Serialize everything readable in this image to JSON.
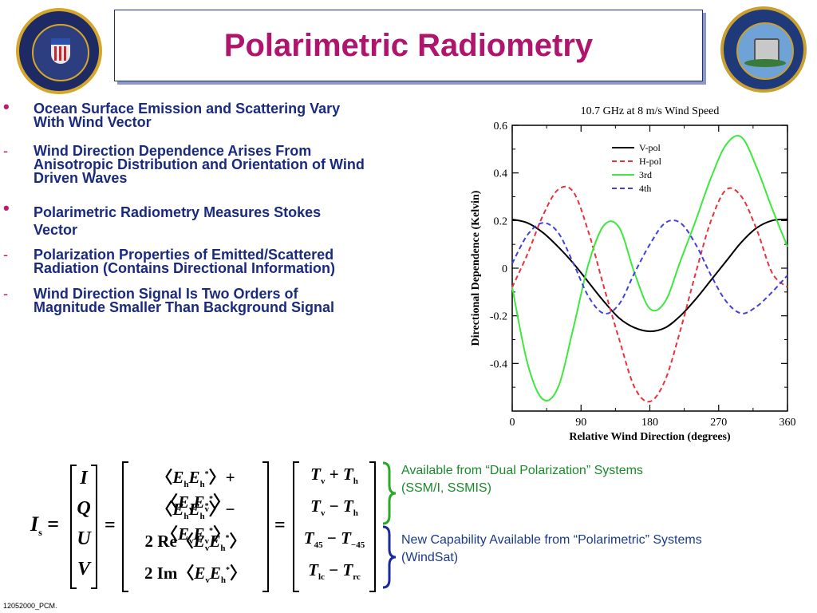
{
  "title": "Polarimetric Radiometry",
  "bullets": [
    {
      "marker": "•",
      "lines": [
        "Ocean Surface Emission and Scattering Vary",
        "With Wind Vector"
      ]
    },
    {
      "marker": "-",
      "lines": [
        "Wind Direction Dependence Arises From",
        "Anisotropic Distribution and Orientation of Wind",
        "Driven Waves"
      ]
    },
    {
      "marker": "•",
      "lines": [
        "Polarimetric Radiometry Measures Stokes",
        "Vector"
      ]
    },
    {
      "marker": "-",
      "lines": [
        "Polarization Properties of Emitted/Scattered",
        "Radiation (Contains Directional Information)"
      ]
    },
    {
      "marker": "-",
      "lines": [
        "Wind Direction Signal Is Two Orders of",
        "Magnitude Smaller Than Background Signal"
      ]
    }
  ],
  "notes": {
    "dual": [
      "Available from “Dual Polarization” Systems",
      "(SSM/I, SSMIS)"
    ],
    "polarimetric": [
      "New Capability Available from “Polarimetric” Systems",
      "(WindSat)"
    ]
  },
  "footer": "12052000_PCM.",
  "colors": {
    "title": "#b0156d",
    "bullet_text": "#1a2a7e",
    "markers": "#c01a6c",
    "note_green": "#1a8a2a",
    "note_blue": "#1a3a8a"
  },
  "chart_data": {
    "type": "line",
    "title": "10.7 GHz at 8 m/s Wind Speed",
    "xlabel": "Relative Wind Direction (degrees)",
    "ylabel": "Directional Dependence (Kelvin)",
    "xlim": [
      0,
      360
    ],
    "ylim": [
      -0.6,
      0.6
    ],
    "xticks": [
      0,
      90,
      180,
      270,
      360
    ],
    "yticks": [
      -0.4,
      -0.2,
      0,
      0.2,
      0.4,
      0.6
    ],
    "ytick_labels": [
      "-0.4",
      "-0.2",
      "0",
      "0.2",
      "0.4",
      "0.6"
    ],
    "legend_position": "top-right",
    "x": [
      0,
      20,
      40,
      60,
      80,
      100,
      120,
      140,
      160,
      180,
      200,
      220,
      240,
      260,
      280,
      300,
      320,
      340,
      360
    ],
    "series": [
      {
        "name": "V-pol",
        "color": "#000000",
        "dash": "",
        "values": [
          0.205,
          0.19,
          0.15,
          0.09,
          0.02,
          -0.06,
          -0.14,
          -0.21,
          -0.25,
          -0.265,
          -0.25,
          -0.2,
          -0.13,
          -0.05,
          0.03,
          0.11,
          0.17,
          0.2,
          0.205
        ]
      },
      {
        "name": "H-pol",
        "color": "#e8323c",
        "dash": "6,4",
        "values": [
          -0.08,
          0.06,
          0.22,
          0.33,
          0.32,
          0.15,
          -0.08,
          -0.3,
          -0.5,
          -0.56,
          -0.47,
          -0.26,
          -0.02,
          0.2,
          0.33,
          0.3,
          0.16,
          -0.02,
          -0.08
        ]
      },
      {
        "name": "3rd",
        "color": "#3ee83e",
        "dash": "",
        "values": [
          -0.08,
          -0.4,
          -0.55,
          -0.5,
          -0.25,
          0.02,
          0.18,
          0.17,
          -0.02,
          -0.17,
          -0.14,
          0.03,
          0.2,
          0.38,
          0.52,
          0.55,
          0.42,
          0.25,
          0.09
        ]
      },
      {
        "name": "4th",
        "color": "#4040e0",
        "dash": "6,4",
        "values": [
          0.02,
          0.14,
          0.19,
          0.15,
          0.02,
          -0.12,
          -0.19,
          -0.15,
          -0.02,
          0.1,
          0.19,
          0.19,
          0.1,
          -0.03,
          -0.14,
          -0.19,
          -0.16,
          -0.1,
          -0.03
        ]
      }
    ]
  }
}
